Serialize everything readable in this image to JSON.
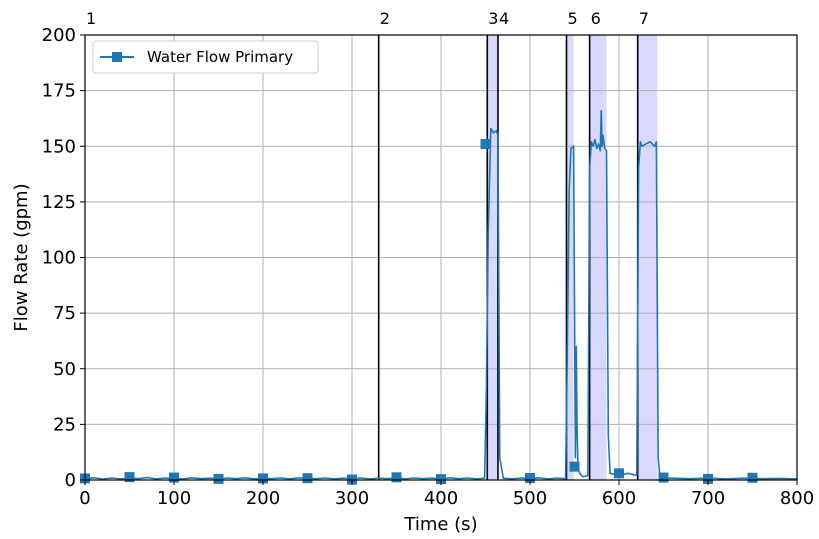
{
  "chart_data": {
    "type": "line",
    "xlabel": "Time (s)",
    "ylabel": "Flow Rate (gpm)",
    "xlim": [
      0,
      800
    ],
    "ylim": [
      0,
      200
    ],
    "xticks": [
      0,
      100,
      200,
      300,
      400,
      500,
      600,
      700,
      800
    ],
    "yticks": [
      0,
      25,
      50,
      75,
      100,
      125,
      150,
      175,
      200
    ],
    "grid": true,
    "legend_position": "top-left",
    "series": [
      {
        "name": "Water Flow Primary",
        "color": "#1f77b4",
        "marker": "square",
        "x": [
          0,
          10,
          20,
          30,
          40,
          50,
          60,
          70,
          80,
          90,
          100,
          110,
          120,
          130,
          140,
          150,
          160,
          170,
          180,
          190,
          200,
          210,
          220,
          230,
          240,
          250,
          260,
          270,
          280,
          290,
          300,
          310,
          320,
          330,
          340,
          350,
          360,
          370,
          380,
          390,
          400,
          410,
          420,
          430,
          440,
          449,
          451,
          453,
          456,
          459,
          462,
          464,
          466,
          470,
          480,
          490,
          500,
          510,
          520,
          530,
          540,
          542,
          544,
          546,
          549,
          551,
          552,
          553,
          554,
          555,
          556,
          558,
          560,
          565,
          567,
          569,
          571,
          573,
          575,
          577,
          579,
          580,
          581,
          582,
          584,
          586,
          588,
          590,
          600,
          610,
          620,
          622,
          624,
          626,
          630,
          635,
          640,
          642,
          644,
          646,
          660,
          680,
          700,
          720,
          740,
          760,
          780,
          800
        ],
        "y": [
          0.6,
          1.0,
          0.4,
          0.9,
          0.5,
          0.8,
          0.6,
          1.1,
          0.5,
          0.9,
          0.7,
          0.5,
          1.0,
          0.6,
          0.8,
          0.5,
          0.9,
          0.6,
          1.0,
          0.5,
          0.8,
          0.6,
          0.9,
          0.5,
          1.0,
          0.7,
          0.6,
          0.9,
          0.5,
          0.8,
          0.6,
          0.9,
          0.5,
          0.8,
          0.6,
          1.0,
          0.5,
          0.9,
          0.6,
          0.8,
          0.5,
          1.0,
          0.6,
          0.9,
          0.5,
          0.8,
          40,
          110,
          158,
          156,
          157,
          155,
          10,
          0.8,
          0.5,
          0.9,
          0.6,
          1.0,
          0.5,
          0.8,
          0.6,
          60,
          130,
          149,
          150,
          10,
          60,
          20,
          5,
          4,
          3,
          2,
          1.5,
          2,
          140,
          152,
          150,
          153,
          149,
          151,
          148,
          166,
          150,
          155,
          149,
          148,
          20,
          3,
          2,
          3,
          2,
          140,
          152,
          150,
          151,
          152,
          150,
          152,
          10,
          1,
          0.8,
          0.6,
          0.9,
          0.5,
          0.8,
          0.6,
          0.7,
          0.5
        ],
        "markers_x": [
          0,
          50,
          100,
          150,
          200,
          250,
          300,
          350,
          400,
          450,
          500,
          550,
          600,
          650,
          700,
          750
        ],
        "markers_y": [
          0.7,
          1.3,
          1.1,
          0.5,
          0.7,
          0.8,
          0.2,
          1.2,
          0.4,
          151,
          0.9,
          6,
          3,
          1.1,
          0.5,
          1.0
        ]
      }
    ],
    "events": [
      {
        "label": "1",
        "x": 0
      },
      {
        "label": "2",
        "x": 330
      },
      {
        "label": "3",
        "x": 452
      },
      {
        "label": "4",
        "x": 464
      },
      {
        "label": "5",
        "x": 541
      },
      {
        "label": "6",
        "x": 567
      },
      {
        "label": "7",
        "x": 621
      }
    ],
    "shaded_regions": [
      {
        "x0": 452,
        "x1": 464
      },
      {
        "x0": 541,
        "x1": 549
      },
      {
        "x0": 567,
        "x1": 586
      },
      {
        "x0": 621,
        "x1": 643
      }
    ]
  }
}
